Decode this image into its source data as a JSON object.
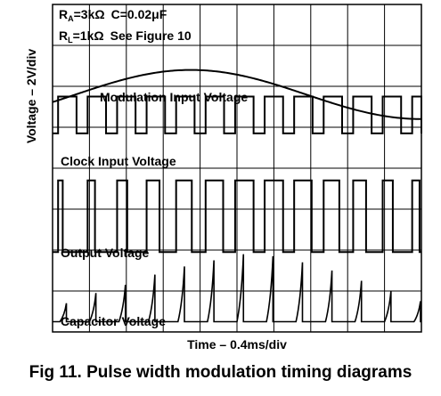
{
  "chart_data": {
    "type": "line",
    "params": {
      "line1": {
        "ra": "R",
        "ra_sub": "A",
        "ra_val": "=3kΩ",
        "c": "C=0.02μF"
      },
      "line2": {
        "rl": "R",
        "rl_sub": "L",
        "rl_val": "=1kΩ",
        "see": "See Figure 10"
      }
    },
    "ylabel": "Voltage – 2V/div",
    "xlabel": "Time – 0.4ms/div",
    "grid": true,
    "grid_divisions": {
      "x": 10,
      "y": 8
    },
    "x_unit": "ms",
    "xlim": [
      0,
      4.0
    ],
    "series": [
      {
        "name": "Modulation Input Voltage",
        "shape": "sine",
        "period_ms": 5.0,
        "peak_at_ms": 1.5,
        "offset_div": 5.8,
        "amplitude_div": 0.6
      },
      {
        "name": "Clock Input Voltage",
        "shape": "pulse",
        "period_ms": 0.32,
        "high_ms": 0.2,
        "low_div": 4.85,
        "high_div": 5.75
      },
      {
        "name": "Output Voltage",
        "shape": "pulse",
        "period_ms": 0.32,
        "low_div": 1.95,
        "high_div": 3.7,
        "pulse_width_ms": [
          0.05,
          0.08,
          0.11,
          0.14,
          0.17,
          0.19,
          0.2,
          0.2,
          0.19,
          0.17,
          0.14,
          0.11,
          0.08
        ]
      },
      {
        "name": "Capacitor Voltage",
        "shape": "ramp",
        "period_ms": 0.32,
        "base_div": 0.25,
        "peak_div": [
          0.7,
          0.95,
          1.15,
          1.4,
          1.6,
          1.75,
          1.9,
          1.85,
          1.7,
          1.5,
          1.25,
          1.0,
          0.75
        ]
      }
    ]
  },
  "caption": "Fig 11. Pulse width modulation timing diagrams"
}
